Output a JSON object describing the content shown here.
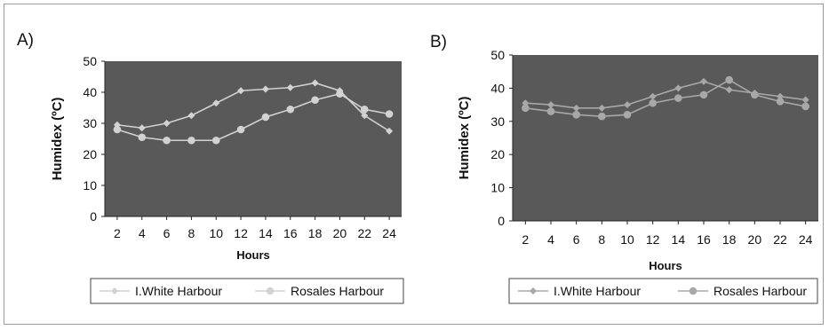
{
  "chart_data": [
    {
      "type": "line",
      "panel_label": "A)",
      "xlabel": "Hours",
      "ylabel": "Humidex (ºC)",
      "ylim": [
        0,
        50
      ],
      "yticks": [
        0,
        10,
        20,
        30,
        40,
        50
      ],
      "xticks": [
        2,
        4,
        6,
        8,
        10,
        12,
        14,
        16,
        18,
        20,
        22,
        24
      ],
      "x": [
        2,
        4,
        6,
        8,
        10,
        12,
        14,
        16,
        18,
        20,
        22,
        24
      ],
      "grid": false,
      "legend_position": "bottom",
      "series": [
        {
          "name": "I.White Harbour",
          "marker": "diamond",
          "color": "#d2d2d2",
          "values": [
            29.5,
            28.5,
            30,
            32.5,
            36.5,
            40.5,
            41,
            41.5,
            43,
            40.5,
            32.5,
            27.5
          ]
        },
        {
          "name": "Rosales Harbour",
          "marker": "circle",
          "color": "#d2d2d2",
          "values": [
            28,
            25.5,
            24.5,
            24.5,
            24.5,
            28,
            32,
            34.5,
            37.5,
            39.5,
            34.5,
            33
          ]
        }
      ]
    },
    {
      "type": "line",
      "panel_label": "B)",
      "xlabel": "Hours",
      "ylabel": "Humidex (ºC)",
      "ylim": [
        0,
        50
      ],
      "yticks": [
        0,
        10,
        20,
        30,
        40,
        50
      ],
      "xticks": [
        2,
        4,
        6,
        8,
        10,
        12,
        14,
        16,
        18,
        20,
        22,
        24
      ],
      "x": [
        2,
        4,
        6,
        8,
        10,
        12,
        14,
        16,
        18,
        20,
        22,
        24
      ],
      "grid": false,
      "legend_position": "bottom",
      "series": [
        {
          "name": "I.White Harbour",
          "marker": "diamond",
          "color": "#a8a8a8",
          "values": [
            35.5,
            35,
            34,
            34,
            35,
            37.5,
            40,
            42,
            39.5,
            38.5,
            37.5,
            36.5
          ]
        },
        {
          "name": "Rosales Harbour",
          "marker": "circle",
          "color": "#a8a8a8",
          "values": [
            34,
            33,
            32,
            31.5,
            32,
            35.5,
            37,
            38,
            42.5,
            38,
            36,
            34.5
          ]
        }
      ]
    }
  ]
}
